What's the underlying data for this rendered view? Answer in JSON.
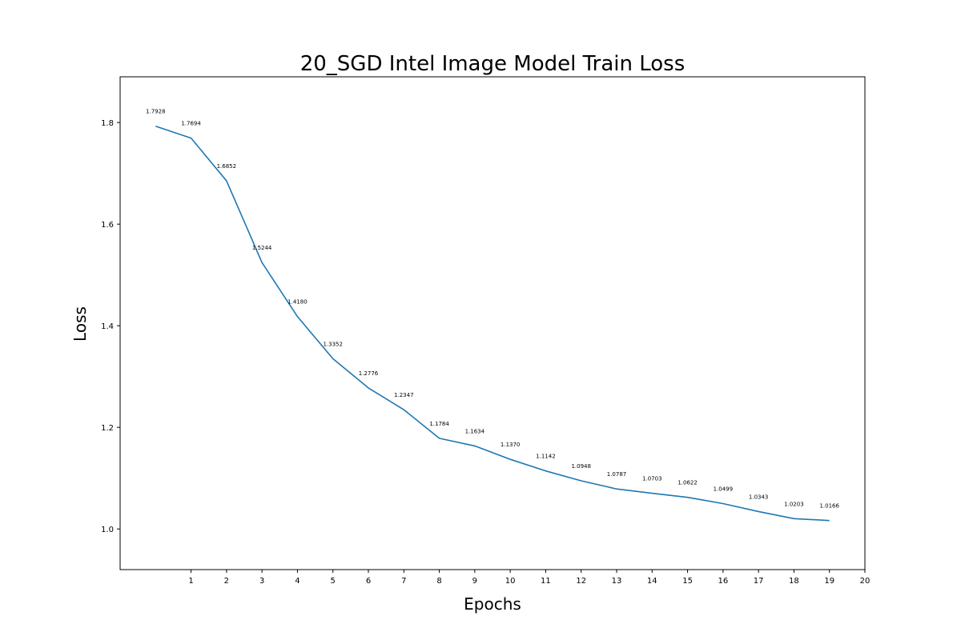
{
  "chart_data": {
    "type": "line",
    "title": "20_SGD Intel Image Model Train Loss",
    "xlabel": "Epochs",
    "ylabel": "Loss",
    "xlim": [
      -1,
      20
    ],
    "ylim": [
      0.92,
      1.89
    ],
    "xticks": [
      "1",
      "2",
      "3",
      "4",
      "5",
      "6",
      "7",
      "8",
      "9",
      "10",
      "11",
      "12",
      "13",
      "14",
      "15",
      "16",
      "17",
      "18",
      "19",
      "20"
    ],
    "yticks": [
      "1.0",
      "1.2",
      "1.4",
      "1.6",
      "1.8"
    ],
    "grid": false,
    "series": [
      {
        "color": "#1f77b4",
        "x": [
          0,
          1,
          2,
          3,
          4,
          5,
          6,
          7,
          8,
          9,
          10,
          11,
          12,
          13,
          14,
          15,
          16,
          17,
          18,
          19
        ],
        "values": [
          1.7928,
          1.7694,
          1.6852,
          1.5244,
          1.418,
          1.3352,
          1.2776,
          1.2347,
          1.1784,
          1.1634,
          1.137,
          1.1142,
          1.0948,
          1.0787,
          1.0703,
          1.0622,
          1.0499,
          1.0343,
          1.0203,
          1.0166
        ],
        "labels": [
          "1.7928",
          "1.7694",
          "1.6852",
          "1.5244",
          "1.4180",
          "1.3352",
          "1.2776",
          "1.2347",
          "1.1784",
          "1.1634",
          "1.1370",
          "1.1142",
          "1.0948",
          "1.0787",
          "1.0703",
          "1.0622",
          "1.0499",
          "1.0343",
          "1.0203",
          "1.0166"
        ]
      }
    ]
  }
}
